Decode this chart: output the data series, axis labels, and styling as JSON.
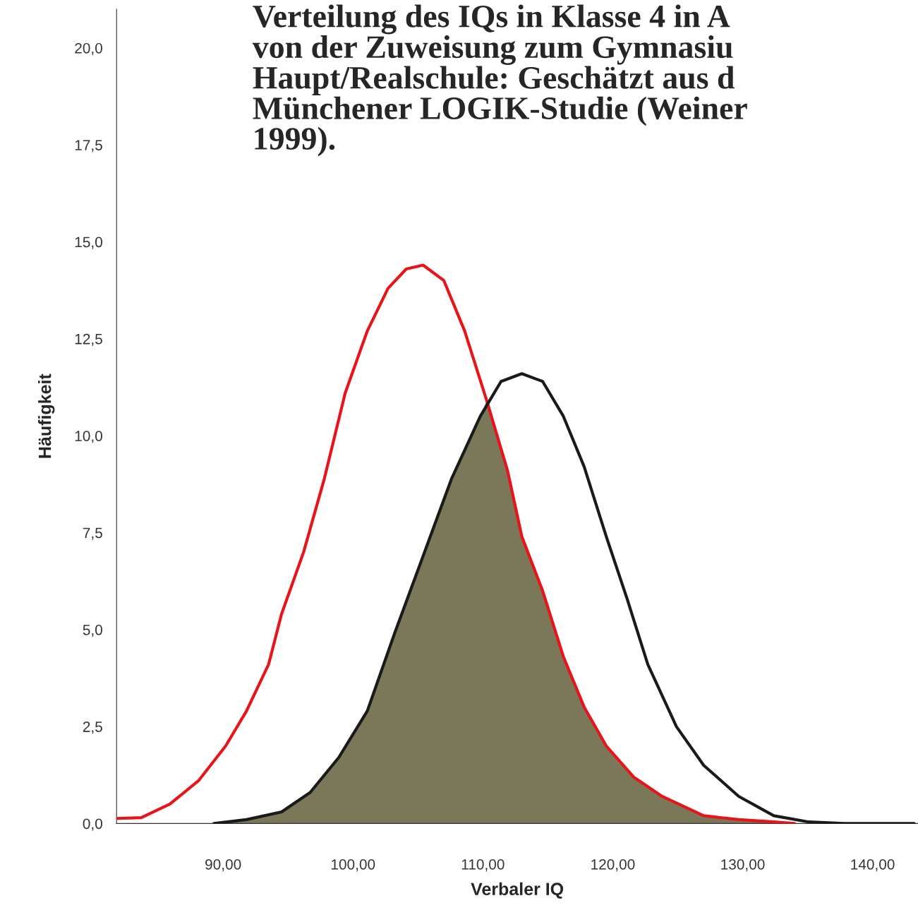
{
  "chart_data": {
    "type": "line",
    "title": "Verteilung des IQs in Klasse 4 in A\nvon der Zuweisung zum Gymnasiu\nHaupt/Realschule: Geschätzt aus d\nMünchener LOGIK-Studie (Weiner\n1999).",
    "xlabel": "Verbaler IQ",
    "ylabel": "Häufigkeit",
    "series": [
      {
        "type": "area",
        "color": "#7a7858",
        "x": [
          89.3,
          91.8,
          94.5,
          96.7,
          98.9,
          101.1,
          103.2,
          105.4,
          107.6,
          109.8,
          110.3,
          111.9,
          113.0,
          114.6,
          116.2,
          117.8,
          119.5,
          121.6,
          123.8,
          127.0,
          129.7,
          132.4,
          134.0
        ],
        "values": [
          0,
          0.1,
          0.3,
          0.8,
          1.7,
          2.9,
          4.9,
          6.9,
          8.9,
          10.5,
          10.9,
          9.1,
          7.4,
          6.0,
          4.3,
          3.0,
          2.0,
          1.2,
          0.7,
          0.2,
          0.1,
          0.04,
          0
        ]
      },
      {
        "color": "#e8141a",
        "x": [
          81.8,
          83.7,
          85.9,
          88.1,
          90.2,
          91.8,
          93.5,
          94.5,
          96.2,
          97.8,
          99.4,
          101.1,
          102.7,
          104.1,
          105.4,
          107.0,
          108.6,
          110.3,
          111.9,
          113.0,
          114.6,
          116.2,
          117.8,
          119.5,
          121.6,
          123.8,
          127.0,
          129.7,
          132.4,
          134.0
        ],
        "values": [
          0.13,
          0.15,
          0.5,
          1.1,
          2.0,
          2.9,
          4.1,
          5.4,
          7.0,
          8.9,
          11.1,
          12.7,
          13.8,
          14.3,
          14.4,
          14.0,
          12.7,
          10.9,
          9.1,
          7.4,
          6.0,
          4.3,
          3.0,
          2.0,
          1.2,
          0.7,
          0.2,
          0.1,
          0.04,
          0
        ]
      },
      {
        "color": "#1a1a1a",
        "x": [
          89.3,
          91.8,
          94.5,
          96.7,
          98.9,
          101.1,
          103.2,
          105.4,
          107.6,
          109.8,
          111.4,
          113.0,
          114.6,
          116.2,
          117.8,
          119.5,
          121.1,
          122.7,
          124.9,
          127.0,
          129.7,
          132.4,
          135.1,
          137.8,
          143.2
        ],
        "values": [
          0,
          0.1,
          0.3,
          0.8,
          1.7,
          2.9,
          4.9,
          6.9,
          8.9,
          10.5,
          11.4,
          11.6,
          11.4,
          10.5,
          9.2,
          7.4,
          5.8,
          4.1,
          2.5,
          1.5,
          0.7,
          0.2,
          0.04,
          0,
          0
        ]
      }
    ],
    "xlim": [
      81.8,
      143.5
    ],
    "ylim": [
      0,
      21
    ],
    "xticks": [
      {
        "value": 90,
        "label": "90,00"
      },
      {
        "value": 100,
        "label": "100,00"
      },
      {
        "value": 110,
        "label": "110,00"
      },
      {
        "value": 120,
        "label": "120,00"
      },
      {
        "value": 130,
        "label": "130,00"
      },
      {
        "value": 140,
        "label": "140,00"
      }
    ],
    "yticks": [
      {
        "value": 0,
        "label": "0,0"
      },
      {
        "value": 2.5,
        "label": "2,5"
      },
      {
        "value": 5,
        "label": "5,0"
      },
      {
        "value": 7.5,
        "label": "7,5"
      },
      {
        "value": 10,
        "label": "10,0"
      },
      {
        "value": 12.5,
        "label": "12,5"
      },
      {
        "value": 15,
        "label": "15,0"
      },
      {
        "value": 17.5,
        "label": "17,5"
      },
      {
        "value": 20,
        "label": "20,0"
      }
    ],
    "grid": false,
    "legend": false
  }
}
